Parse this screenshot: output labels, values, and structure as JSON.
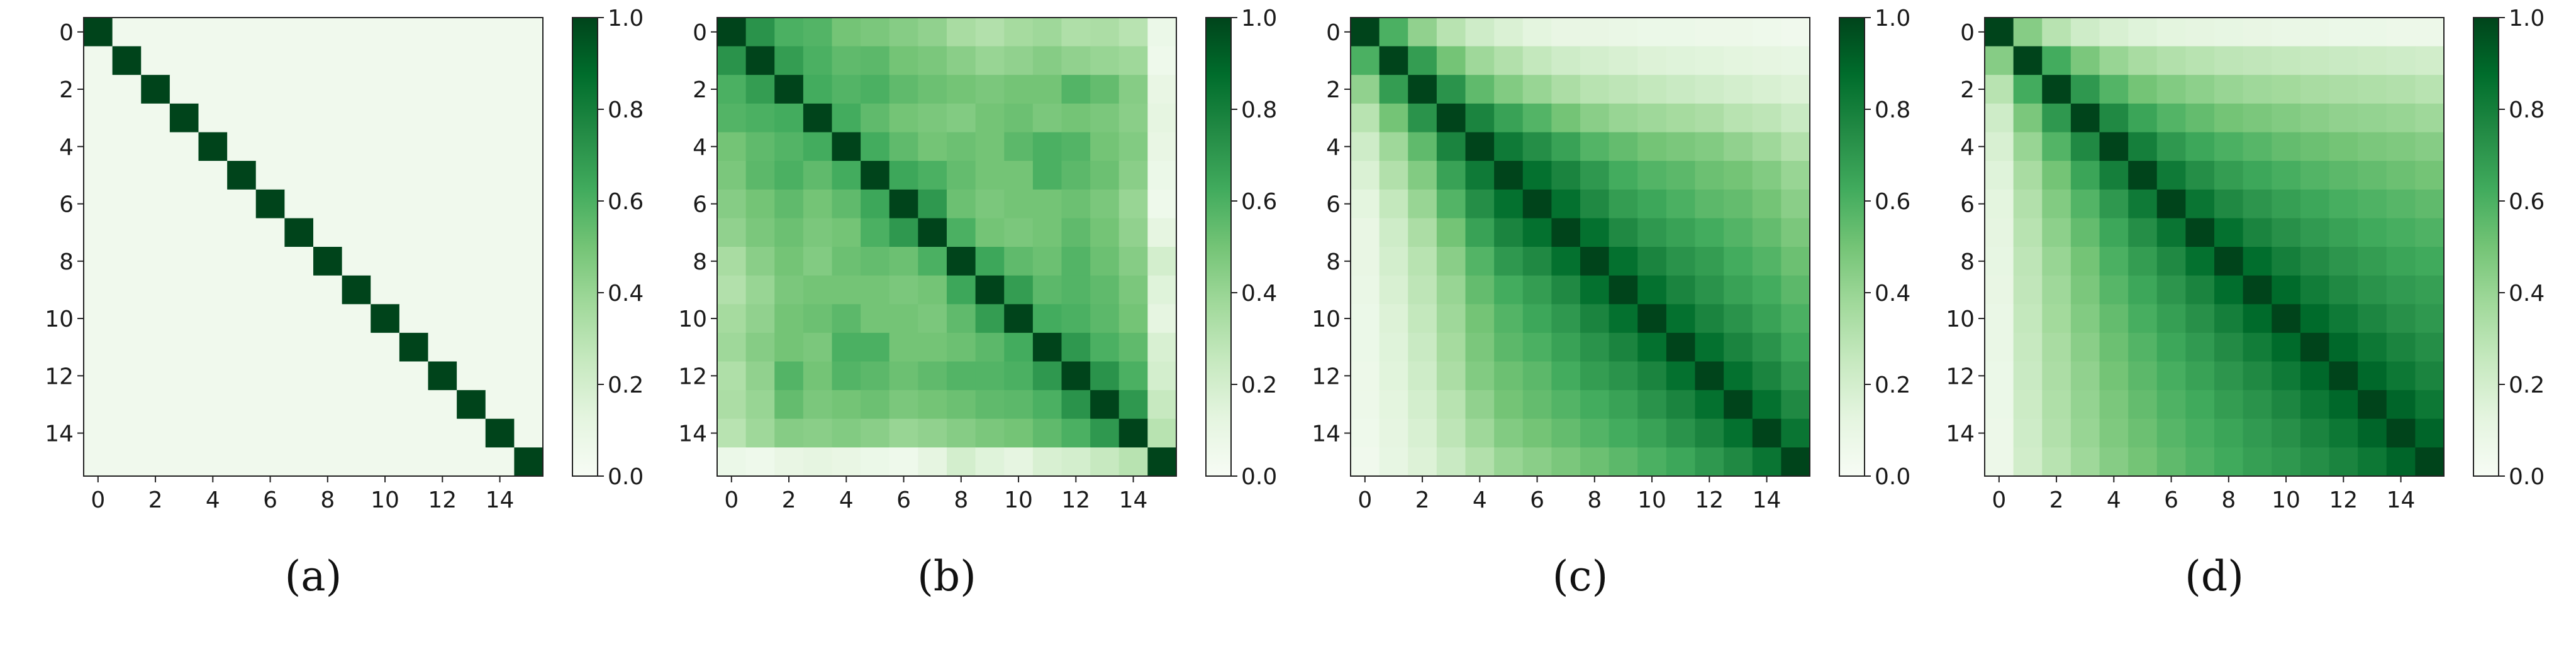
{
  "chart_data": [
    {
      "type": "heatmap",
      "caption": "(a)",
      "size": 16,
      "xticks": [
        "0",
        "2",
        "4",
        "6",
        "8",
        "10",
        "12",
        "14"
      ],
      "yticks": [
        "0",
        "2",
        "4",
        "6",
        "8",
        "10",
        "12",
        "14"
      ],
      "colorbar_ticks": [
        "0.0",
        "0.2",
        "0.4",
        "0.6",
        "0.8",
        "1.0"
      ],
      "vmin": 0.0,
      "vmax": 1.0,
      "colormap": "Greens",
      "values": [
        [
          1.0,
          0.05,
          0.05,
          0.05,
          0.05,
          0.05,
          0.05,
          0.05,
          0.05,
          0.05,
          0.05,
          0.05,
          0.05,
          0.05,
          0.05,
          0.05
        ],
        [
          0.05,
          1.0,
          0.05,
          0.05,
          0.05,
          0.05,
          0.05,
          0.05,
          0.05,
          0.05,
          0.05,
          0.05,
          0.05,
          0.05,
          0.05,
          0.05
        ],
        [
          0.05,
          0.05,
          1.0,
          0.05,
          0.05,
          0.05,
          0.05,
          0.05,
          0.05,
          0.05,
          0.05,
          0.05,
          0.05,
          0.05,
          0.05,
          0.05
        ],
        [
          0.05,
          0.05,
          0.05,
          1.0,
          0.05,
          0.05,
          0.05,
          0.05,
          0.05,
          0.05,
          0.05,
          0.05,
          0.05,
          0.05,
          0.05,
          0.05
        ],
        [
          0.05,
          0.05,
          0.05,
          0.05,
          1.0,
          0.05,
          0.05,
          0.05,
          0.05,
          0.05,
          0.05,
          0.05,
          0.05,
          0.05,
          0.05,
          0.05
        ],
        [
          0.05,
          0.05,
          0.05,
          0.05,
          0.05,
          1.0,
          0.05,
          0.05,
          0.05,
          0.05,
          0.05,
          0.05,
          0.05,
          0.05,
          0.05,
          0.05
        ],
        [
          0.05,
          0.05,
          0.05,
          0.05,
          0.05,
          0.05,
          1.0,
          0.05,
          0.05,
          0.05,
          0.05,
          0.05,
          0.05,
          0.05,
          0.05,
          0.05
        ],
        [
          0.05,
          0.05,
          0.05,
          0.05,
          0.05,
          0.05,
          0.05,
          1.0,
          0.05,
          0.05,
          0.05,
          0.05,
          0.05,
          0.05,
          0.05,
          0.05
        ],
        [
          0.05,
          0.05,
          0.05,
          0.05,
          0.05,
          0.05,
          0.05,
          0.05,
          1.0,
          0.05,
          0.05,
          0.05,
          0.05,
          0.05,
          0.05,
          0.05
        ],
        [
          0.05,
          0.05,
          0.05,
          0.05,
          0.05,
          0.05,
          0.05,
          0.05,
          0.05,
          1.0,
          0.05,
          0.05,
          0.05,
          0.05,
          0.05,
          0.05
        ],
        [
          0.05,
          0.05,
          0.05,
          0.05,
          0.05,
          0.05,
          0.05,
          0.05,
          0.05,
          0.05,
          1.0,
          0.05,
          0.05,
          0.05,
          0.05,
          0.05
        ],
        [
          0.05,
          0.05,
          0.05,
          0.05,
          0.05,
          0.05,
          0.05,
          0.05,
          0.05,
          0.05,
          0.05,
          1.0,
          0.05,
          0.05,
          0.05,
          0.05
        ],
        [
          0.05,
          0.05,
          0.05,
          0.05,
          0.05,
          0.05,
          0.05,
          0.05,
          0.05,
          0.05,
          0.05,
          0.05,
          1.0,
          0.05,
          0.05,
          0.05
        ],
        [
          0.05,
          0.05,
          0.05,
          0.05,
          0.05,
          0.05,
          0.05,
          0.05,
          0.05,
          0.05,
          0.05,
          0.05,
          0.05,
          1.0,
          0.05,
          0.05
        ],
        [
          0.05,
          0.05,
          0.05,
          0.05,
          0.05,
          0.05,
          0.05,
          0.05,
          0.05,
          0.05,
          0.05,
          0.05,
          0.05,
          0.05,
          1.0,
          0.05
        ],
        [
          0.05,
          0.05,
          0.05,
          0.05,
          0.05,
          0.05,
          0.05,
          0.05,
          0.05,
          0.05,
          0.05,
          0.05,
          0.05,
          0.05,
          0.05,
          1.0
        ]
      ]
    },
    {
      "type": "heatmap",
      "caption": "(b)",
      "size": 16,
      "xticks": [
        "0",
        "2",
        "4",
        "6",
        "8",
        "10",
        "12",
        "14"
      ],
      "yticks": [
        "0",
        "2",
        "4",
        "6",
        "8",
        "10",
        "12",
        "14"
      ],
      "colorbar_ticks": [
        "0.0",
        "0.2",
        "0.4",
        "0.6",
        "0.8",
        "1.0"
      ],
      "vmin": 0.0,
      "vmax": 1.0,
      "colormap": "Greens",
      "values": [
        [
          1.0,
          0.72,
          0.6,
          0.58,
          0.5,
          0.48,
          0.45,
          0.42,
          0.35,
          0.32,
          0.36,
          0.38,
          0.33,
          0.34,
          0.3,
          0.08
        ],
        [
          0.72,
          1.0,
          0.68,
          0.6,
          0.55,
          0.56,
          0.5,
          0.48,
          0.44,
          0.4,
          0.42,
          0.45,
          0.42,
          0.4,
          0.38,
          0.06
        ],
        [
          0.6,
          0.68,
          1.0,
          0.62,
          0.58,
          0.6,
          0.55,
          0.52,
          0.5,
          0.48,
          0.5,
          0.5,
          0.58,
          0.54,
          0.45,
          0.1
        ],
        [
          0.58,
          0.6,
          0.62,
          1.0,
          0.62,
          0.55,
          0.5,
          0.48,
          0.46,
          0.5,
          0.52,
          0.48,
          0.5,
          0.48,
          0.44,
          0.12
        ],
        [
          0.5,
          0.55,
          0.58,
          0.62,
          1.0,
          0.62,
          0.55,
          0.5,
          0.52,
          0.5,
          0.56,
          0.6,
          0.58,
          0.5,
          0.46,
          0.1
        ],
        [
          0.48,
          0.56,
          0.6,
          0.55,
          0.62,
          1.0,
          0.64,
          0.6,
          0.54,
          0.5,
          0.5,
          0.6,
          0.56,
          0.52,
          0.44,
          0.08
        ],
        [
          0.45,
          0.5,
          0.55,
          0.5,
          0.55,
          0.64,
          1.0,
          0.7,
          0.52,
          0.48,
          0.5,
          0.5,
          0.52,
          0.48,
          0.4,
          0.06
        ],
        [
          0.42,
          0.48,
          0.52,
          0.48,
          0.5,
          0.6,
          0.7,
          1.0,
          0.6,
          0.5,
          0.48,
          0.5,
          0.55,
          0.5,
          0.42,
          0.12
        ],
        [
          0.35,
          0.44,
          0.5,
          0.46,
          0.52,
          0.54,
          0.52,
          0.6,
          1.0,
          0.64,
          0.55,
          0.52,
          0.58,
          0.52,
          0.45,
          0.2
        ],
        [
          0.32,
          0.4,
          0.48,
          0.5,
          0.5,
          0.5,
          0.48,
          0.5,
          0.64,
          1.0,
          0.68,
          0.56,
          0.58,
          0.55,
          0.48,
          0.15
        ],
        [
          0.36,
          0.42,
          0.5,
          0.52,
          0.56,
          0.5,
          0.5,
          0.48,
          0.55,
          0.68,
          1.0,
          0.62,
          0.6,
          0.56,
          0.5,
          0.12
        ],
        [
          0.38,
          0.45,
          0.5,
          0.48,
          0.6,
          0.6,
          0.5,
          0.5,
          0.52,
          0.56,
          0.62,
          1.0,
          0.7,
          0.6,
          0.55,
          0.18
        ],
        [
          0.33,
          0.42,
          0.58,
          0.5,
          0.58,
          0.56,
          0.52,
          0.55,
          0.58,
          0.58,
          0.6,
          0.7,
          1.0,
          0.72,
          0.6,
          0.2
        ],
        [
          0.34,
          0.4,
          0.54,
          0.48,
          0.5,
          0.52,
          0.48,
          0.5,
          0.52,
          0.55,
          0.56,
          0.6,
          0.72,
          1.0,
          0.7,
          0.25
        ],
        [
          0.3,
          0.38,
          0.45,
          0.44,
          0.46,
          0.44,
          0.4,
          0.42,
          0.45,
          0.48,
          0.5,
          0.55,
          0.6,
          0.7,
          1.0,
          0.3
        ],
        [
          0.08,
          0.06,
          0.1,
          0.12,
          0.1,
          0.08,
          0.06,
          0.12,
          0.2,
          0.15,
          0.12,
          0.18,
          0.2,
          0.25,
          0.3,
          1.0
        ]
      ]
    },
    {
      "type": "heatmap",
      "caption": "(c)",
      "size": 16,
      "xticks": [
        "0",
        "2",
        "4",
        "6",
        "8",
        "10",
        "12",
        "14"
      ],
      "yticks": [
        "0",
        "2",
        "4",
        "6",
        "8",
        "10",
        "12",
        "14"
      ],
      "colorbar_ticks": [
        "0.0",
        "0.2",
        "0.4",
        "0.6",
        "0.8",
        "1.0"
      ],
      "vmin": 0.0,
      "vmax": 1.0,
      "colormap": "Greens",
      "values": [
        [
          1.0,
          0.6,
          0.42,
          0.3,
          0.22,
          0.17,
          0.13,
          0.1,
          0.1,
          0.09,
          0.08,
          0.08,
          0.07,
          0.07,
          0.06,
          0.05
        ],
        [
          0.6,
          1.0,
          0.68,
          0.5,
          0.38,
          0.32,
          0.26,
          0.22,
          0.2,
          0.18,
          0.16,
          0.15,
          0.14,
          0.13,
          0.12,
          0.11
        ],
        [
          0.42,
          0.68,
          1.0,
          0.72,
          0.55,
          0.46,
          0.4,
          0.34,
          0.3,
          0.28,
          0.26,
          0.24,
          0.22,
          0.2,
          0.18,
          0.16
        ],
        [
          0.3,
          0.5,
          0.72,
          1.0,
          0.78,
          0.66,
          0.58,
          0.5,
          0.44,
          0.4,
          0.38,
          0.36,
          0.34,
          0.3,
          0.28,
          0.24
        ],
        [
          0.22,
          0.38,
          0.55,
          0.78,
          1.0,
          0.82,
          0.74,
          0.66,
          0.58,
          0.54,
          0.5,
          0.48,
          0.46,
          0.42,
          0.38,
          0.32
        ],
        [
          0.17,
          0.32,
          0.46,
          0.66,
          0.82,
          1.0,
          0.86,
          0.78,
          0.7,
          0.62,
          0.58,
          0.56,
          0.52,
          0.5,
          0.46,
          0.4
        ],
        [
          0.13,
          0.26,
          0.4,
          0.58,
          0.74,
          0.86,
          1.0,
          0.86,
          0.76,
          0.68,
          0.64,
          0.6,
          0.56,
          0.54,
          0.5,
          0.44
        ],
        [
          0.1,
          0.22,
          0.34,
          0.5,
          0.66,
          0.78,
          0.86,
          1.0,
          0.86,
          0.76,
          0.7,
          0.66,
          0.62,
          0.58,
          0.54,
          0.48
        ],
        [
          0.1,
          0.2,
          0.3,
          0.44,
          0.58,
          0.7,
          0.76,
          0.86,
          1.0,
          0.86,
          0.78,
          0.72,
          0.68,
          0.62,
          0.58,
          0.52
        ],
        [
          0.09,
          0.18,
          0.28,
          0.4,
          0.54,
          0.62,
          0.68,
          0.76,
          0.86,
          1.0,
          0.86,
          0.78,
          0.72,
          0.66,
          0.62,
          0.56
        ],
        [
          0.08,
          0.16,
          0.26,
          0.38,
          0.5,
          0.58,
          0.64,
          0.7,
          0.78,
          0.86,
          1.0,
          0.86,
          0.78,
          0.72,
          0.66,
          0.6
        ],
        [
          0.08,
          0.15,
          0.24,
          0.36,
          0.48,
          0.56,
          0.6,
          0.66,
          0.72,
          0.78,
          0.86,
          1.0,
          0.86,
          0.78,
          0.72,
          0.64
        ],
        [
          0.07,
          0.14,
          0.22,
          0.34,
          0.46,
          0.52,
          0.56,
          0.62,
          0.68,
          0.72,
          0.78,
          0.86,
          1.0,
          0.86,
          0.78,
          0.7
        ],
        [
          0.07,
          0.13,
          0.2,
          0.3,
          0.42,
          0.5,
          0.54,
          0.58,
          0.62,
          0.66,
          0.72,
          0.78,
          0.86,
          1.0,
          0.86,
          0.76
        ],
        [
          0.06,
          0.12,
          0.18,
          0.28,
          0.38,
          0.46,
          0.5,
          0.54,
          0.58,
          0.62,
          0.66,
          0.72,
          0.78,
          0.86,
          1.0,
          0.84
        ],
        [
          0.05,
          0.11,
          0.16,
          0.24,
          0.32,
          0.4,
          0.44,
          0.48,
          0.52,
          0.56,
          0.6,
          0.64,
          0.7,
          0.76,
          0.84,
          1.0
        ]
      ]
    },
    {
      "type": "heatmap",
      "caption": "(d)",
      "size": 16,
      "xticks": [
        "0",
        "2",
        "4",
        "6",
        "8",
        "10",
        "12",
        "14"
      ],
      "yticks": [
        "0",
        "2",
        "4",
        "6",
        "8",
        "10",
        "12",
        "14"
      ],
      "colorbar_ticks": [
        "0.0",
        "0.2",
        "0.4",
        "0.6",
        "0.8",
        "1.0"
      ],
      "vmin": 0.0,
      "vmax": 1.0,
      "colormap": "Greens",
      "values": [
        [
          1.0,
          0.45,
          0.3,
          0.22,
          0.18,
          0.15,
          0.13,
          0.12,
          0.11,
          0.1,
          0.09,
          0.09,
          0.08,
          0.08,
          0.07,
          0.07
        ],
        [
          0.45,
          1.0,
          0.62,
          0.48,
          0.4,
          0.35,
          0.32,
          0.3,
          0.28,
          0.27,
          0.26,
          0.25,
          0.24,
          0.23,
          0.22,
          0.21
        ],
        [
          0.3,
          0.62,
          1.0,
          0.7,
          0.58,
          0.5,
          0.46,
          0.43,
          0.4,
          0.38,
          0.37,
          0.35,
          0.34,
          0.33,
          0.32,
          0.3
        ],
        [
          0.22,
          0.48,
          0.7,
          1.0,
          0.76,
          0.65,
          0.58,
          0.54,
          0.5,
          0.48,
          0.46,
          0.44,
          0.42,
          0.41,
          0.4,
          0.38
        ],
        [
          0.18,
          0.4,
          0.58,
          0.76,
          1.0,
          0.8,
          0.7,
          0.64,
          0.6,
          0.57,
          0.54,
          0.52,
          0.5,
          0.48,
          0.47,
          0.45
        ],
        [
          0.15,
          0.35,
          0.5,
          0.65,
          0.8,
          1.0,
          0.82,
          0.74,
          0.68,
          0.64,
          0.61,
          0.58,
          0.56,
          0.54,
          0.52,
          0.5
        ],
        [
          0.13,
          0.32,
          0.46,
          0.58,
          0.7,
          0.82,
          1.0,
          0.84,
          0.76,
          0.71,
          0.67,
          0.64,
          0.61,
          0.59,
          0.57,
          0.55
        ],
        [
          0.12,
          0.3,
          0.43,
          0.54,
          0.64,
          0.74,
          0.84,
          1.0,
          0.86,
          0.78,
          0.73,
          0.69,
          0.66,
          0.63,
          0.61,
          0.59
        ],
        [
          0.11,
          0.28,
          0.4,
          0.5,
          0.6,
          0.68,
          0.76,
          0.86,
          1.0,
          0.87,
          0.8,
          0.75,
          0.71,
          0.68,
          0.65,
          0.63
        ],
        [
          0.1,
          0.27,
          0.38,
          0.48,
          0.57,
          0.64,
          0.71,
          0.78,
          0.87,
          1.0,
          0.88,
          0.81,
          0.76,
          0.72,
          0.69,
          0.67
        ],
        [
          0.09,
          0.26,
          0.37,
          0.46,
          0.54,
          0.61,
          0.67,
          0.73,
          0.8,
          0.88,
          1.0,
          0.88,
          0.82,
          0.77,
          0.73,
          0.7
        ],
        [
          0.09,
          0.25,
          0.35,
          0.44,
          0.52,
          0.58,
          0.64,
          0.69,
          0.75,
          0.81,
          0.88,
          1.0,
          0.89,
          0.83,
          0.78,
          0.74
        ],
        [
          0.08,
          0.24,
          0.34,
          0.42,
          0.5,
          0.56,
          0.61,
          0.66,
          0.71,
          0.76,
          0.82,
          0.89,
          1.0,
          0.89,
          0.83,
          0.78
        ],
        [
          0.08,
          0.23,
          0.33,
          0.41,
          0.48,
          0.54,
          0.59,
          0.63,
          0.68,
          0.72,
          0.77,
          0.83,
          0.89,
          1.0,
          0.9,
          0.83
        ],
        [
          0.07,
          0.22,
          0.32,
          0.4,
          0.47,
          0.52,
          0.57,
          0.61,
          0.65,
          0.69,
          0.73,
          0.78,
          0.83,
          0.9,
          1.0,
          0.9
        ],
        [
          0.07,
          0.21,
          0.3,
          0.38,
          0.45,
          0.5,
          0.55,
          0.59,
          0.63,
          0.67,
          0.7,
          0.74,
          0.78,
          0.83,
          0.9,
          1.0
        ]
      ]
    }
  ]
}
